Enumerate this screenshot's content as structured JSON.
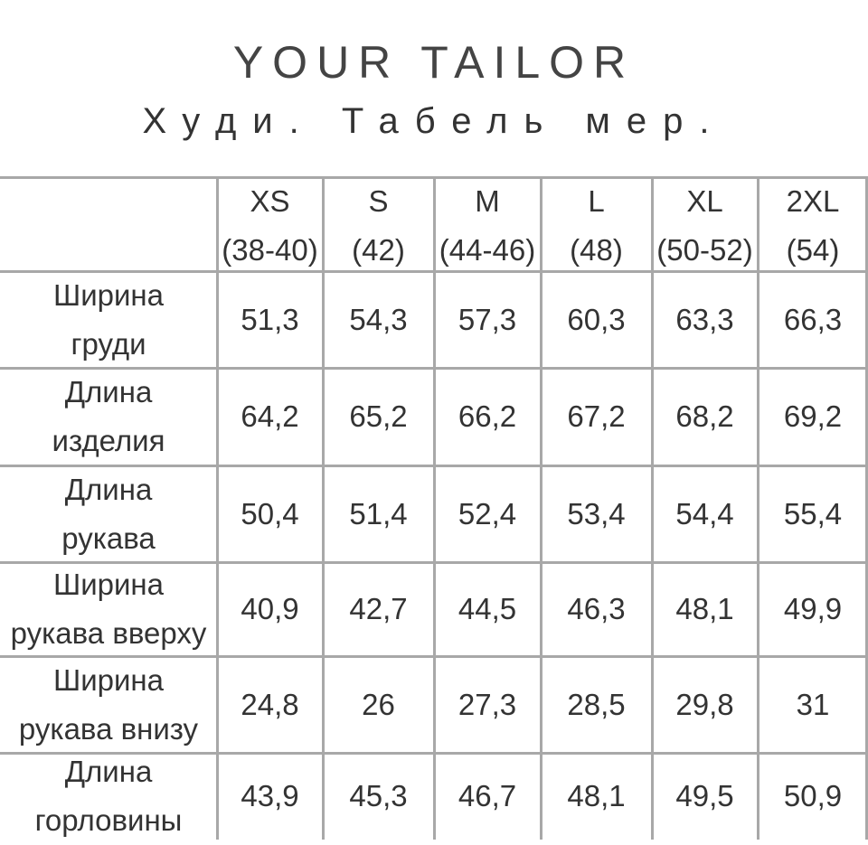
{
  "header": {
    "brand": "YOUR TAILOR",
    "title": "Худи. Табель мер."
  },
  "table": {
    "columns": [
      {
        "size": "XS",
        "range": "(38-40)"
      },
      {
        "size": "S",
        "range": "(42)"
      },
      {
        "size": "M",
        "range": "(44-46)"
      },
      {
        "size": "L",
        "range": "(48)"
      },
      {
        "size": "XL",
        "range": "(50-52)"
      },
      {
        "size": "2XL",
        "range": "(54)"
      }
    ],
    "rows": [
      {
        "label": [
          "Ширина",
          "груди"
        ],
        "values": [
          "51,3",
          "54,3",
          "57,3",
          "60,3",
          "63,3",
          "66,3"
        ]
      },
      {
        "label": [
          "Длина",
          "изделия"
        ],
        "values": [
          "64,2",
          "65,2",
          "66,2",
          "67,2",
          "68,2",
          "69,2"
        ]
      },
      {
        "label": [
          "Длина",
          "рукава"
        ],
        "values": [
          "50,4",
          "51,4",
          "52,4",
          "53,4",
          "54,4",
          "55,4"
        ]
      },
      {
        "label": [
          "Ширина",
          "рукава вверху"
        ],
        "values": [
          "40,9",
          "42,7",
          "44,5",
          "46,3",
          "48,1",
          "49,9"
        ]
      },
      {
        "label": [
          "Ширина",
          "рукава внизу"
        ],
        "values": [
          "24,8",
          "26",
          "27,3",
          "28,5",
          "29,8",
          "31"
        ]
      },
      {
        "label": [
          "Длина",
          "горловины"
        ],
        "values": [
          "43,9",
          "45,3",
          "46,7",
          "48,1",
          "49,5",
          "50,9"
        ]
      }
    ]
  }
}
